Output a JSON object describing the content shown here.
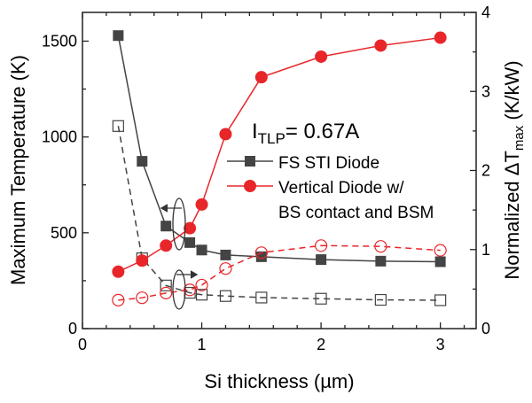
{
  "chart_data": {
    "type": "line",
    "xlabel": "Si thickness (µm)",
    "ylabel_left": "Maximum Temperature (K)",
    "ylabel_right_prefix": "Normalized ΔT",
    "ylabel_right_sub": "max",
    "ylabel_right_suffix": " (K/kW)",
    "annotation_main": "I",
    "annotation_sub": "TLP",
    "annotation_rest": "= 0.67A",
    "xlim": [
      0,
      3.3
    ],
    "ylim_left": [
      0,
      1650
    ],
    "ylim_right": [
      0,
      4
    ],
    "x_ticks": [
      "0",
      "1",
      "2",
      "3"
    ],
    "y_left_ticks": [
      "0",
      "500",
      "1000",
      "1500"
    ],
    "y_right_ticks": [
      "0",
      "1",
      "2",
      "3",
      "4"
    ],
    "x": [
      0.3,
      0.5,
      0.7,
      0.9,
      1.0,
      1.2,
      1.5,
      2.0,
      2.5,
      3.0
    ],
    "series": [
      {
        "name": "FS STI Diode",
        "axis": "left",
        "marker": "square-filled",
        "line": "solid",
        "color": "#444444",
        "values": [
          1529,
          873,
          535,
          449,
          410,
          384,
          375,
          360,
          352,
          349
        ]
      },
      {
        "axis": "left",
        "marker": "square-open",
        "line": "dashed",
        "color": "#444444",
        "values": [
          1057,
          367,
          225,
          187,
          177,
          170,
          162,
          156,
          150,
          148
        ]
      },
      {
        "name": "Vertical Diode w/ BS contact and BSM",
        "axis": "right",
        "marker": "circle-filled",
        "line": "solid",
        "color": "#e8262a",
        "values": [
          0.72,
          0.86,
          1.05,
          1.27,
          1.57,
          2.46,
          3.18,
          3.44,
          3.58,
          3.68
        ]
      },
      {
        "axis": "right",
        "marker": "circle-open",
        "line": "dashed",
        "color": "#e8262a",
        "values": [
          0.36,
          0.39,
          0.45,
          0.49,
          0.55,
          0.76,
          0.96,
          1.05,
          1.04,
          0.99
        ]
      }
    ],
    "legend": [
      "FS STI Diode",
      "Vertical Diode w/",
      "BS contact and BSM"
    ],
    "legend_placement": "center-right",
    "grid": false
  }
}
